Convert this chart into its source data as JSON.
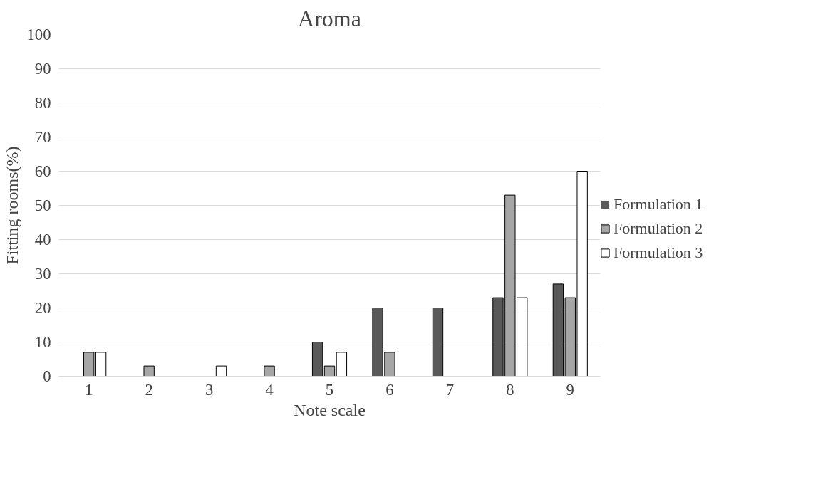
{
  "chart_data": {
    "type": "bar",
    "title": "Aroma",
    "xlabel": "Note scale",
    "ylabel": "Fitting rooms(%)",
    "categories": [
      "1",
      "2",
      "3",
      "4",
      "5",
      "6",
      "7",
      "8",
      "9"
    ],
    "series": [
      {
        "name": "Formulation 1",
        "color": "#595959",
        "values": [
          0,
          0,
          0,
          0,
          10,
          20,
          20,
          23,
          27
        ]
      },
      {
        "name": "Formulation 2",
        "color": "#a6a6a6",
        "values": [
          7,
          3,
          0,
          3,
          3,
          7,
          0,
          53,
          23
        ]
      },
      {
        "name": "Formulation 3",
        "color": "#ffffff",
        "values": [
          7,
          0,
          3,
          0,
          7,
          0,
          0,
          23,
          60
        ]
      }
    ],
    "ylim": [
      0,
      100
    ],
    "yticks": [
      0,
      10,
      20,
      30,
      40,
      50,
      60,
      70,
      80,
      90,
      100
    ],
    "grid": "y",
    "legend": "right"
  }
}
